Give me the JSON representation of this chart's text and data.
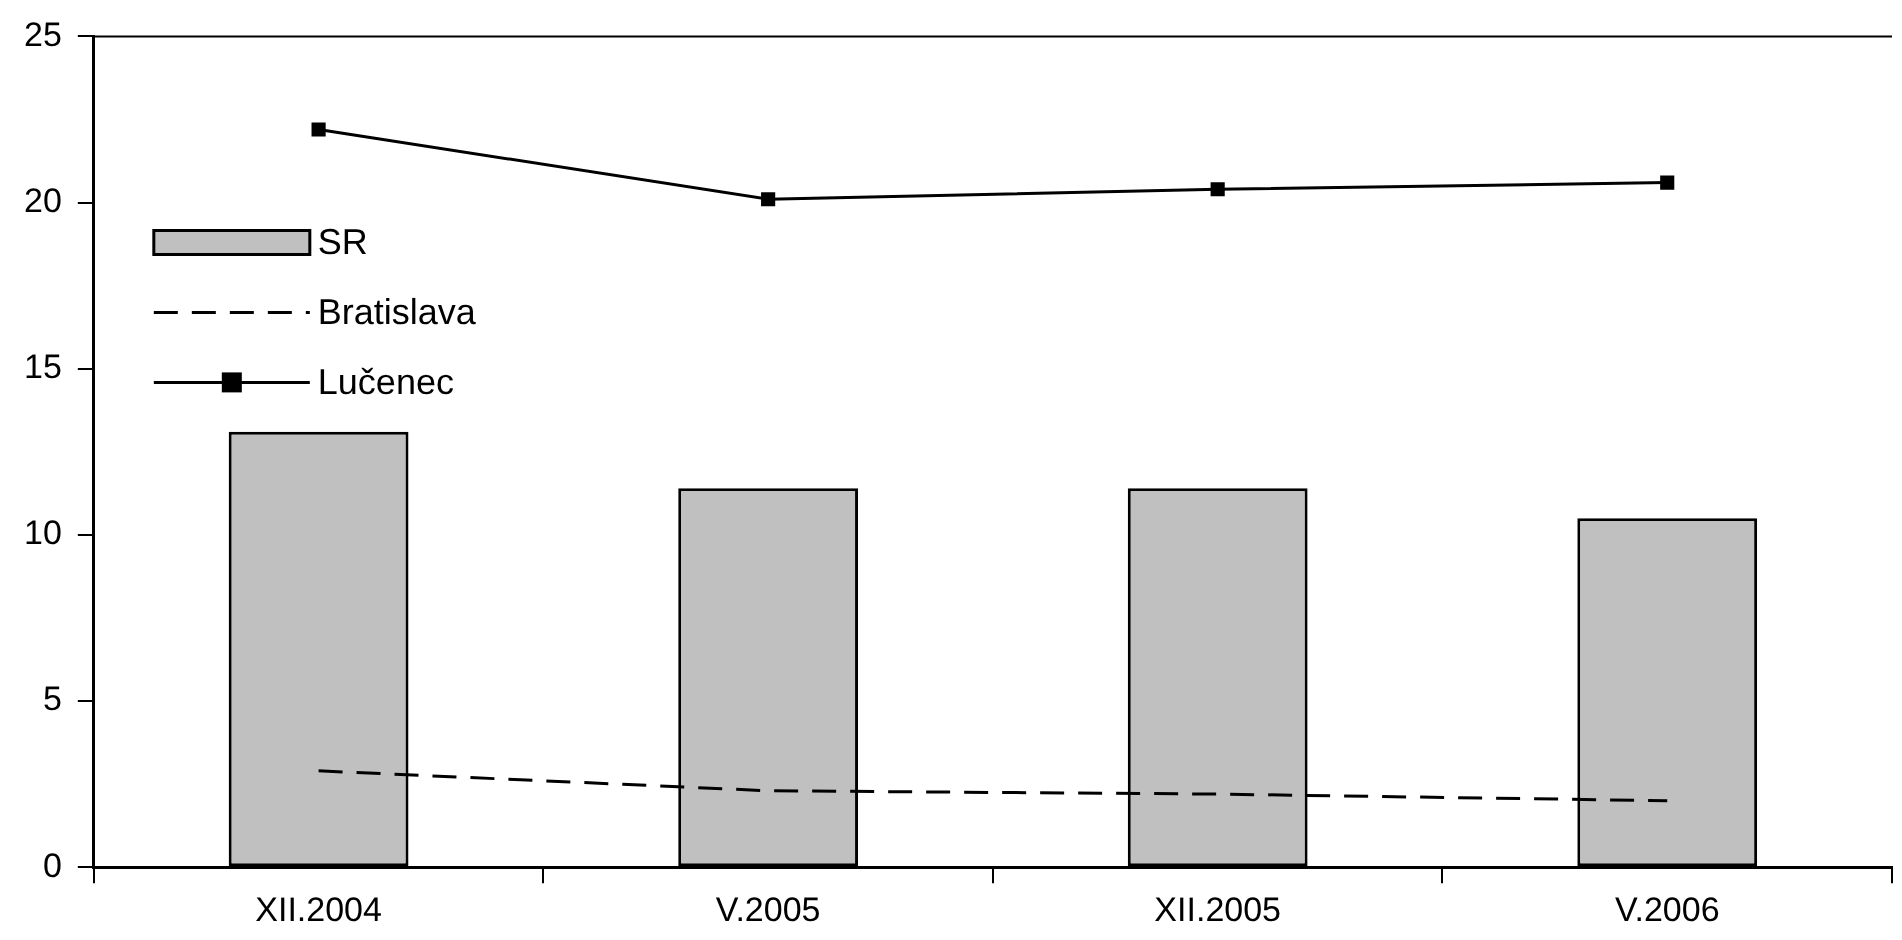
{
  "chart_data": {
    "type": "bar",
    "categories": [
      "XII.2004",
      "V.2005",
      "XII.2005",
      "V.2006"
    ],
    "series": [
      {
        "name": "SR",
        "color": "#c0c0c0",
        "values": [
          13.1,
          11.4,
          11.4,
          10.5
        ]
      },
      {
        "name": "Bratislava",
        "type": "line",
        "color": "#000000",
        "line_style": "dashed",
        "marker": "none",
        "values": [
          2.9,
          2.3,
          2.2,
          2.0
        ]
      },
      {
        "name": "Lučenec",
        "type": "line",
        "color": "#000000",
        "line_style": "solid",
        "marker": "square",
        "values": [
          22.2,
          20.1,
          20.4,
          20.6
        ]
      }
    ],
    "ylim": [
      0,
      25
    ],
    "yticks": [
      0,
      5,
      10,
      15,
      20,
      25
    ],
    "grid": false,
    "legend": "top left"
  }
}
